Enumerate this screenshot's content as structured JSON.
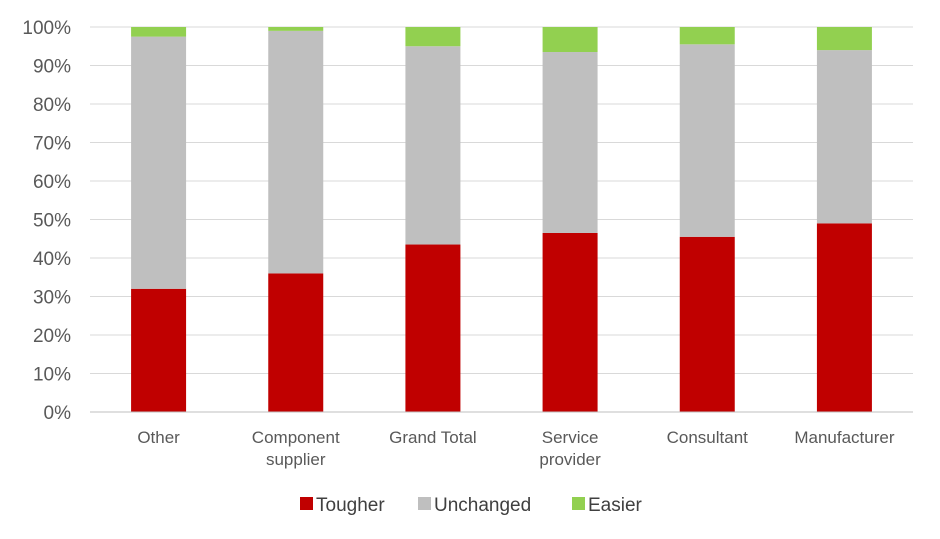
{
  "chart_data": {
    "type": "bar",
    "stacked": true,
    "percent_stacked": true,
    "categories": [
      [
        "Other"
      ],
      [
        "Component",
        "supplier"
      ],
      [
        "Grand Total"
      ],
      [
        "Service",
        "provider"
      ],
      [
        "Consultant"
      ],
      [
        "Manufacturer"
      ]
    ],
    "series": [
      {
        "name": "Tougher",
        "color": "#c00000",
        "values": [
          32,
          36,
          43.5,
          46.5,
          45.5,
          49
        ]
      },
      {
        "name": "Unchanged",
        "color": "#bfbfbf",
        "values": [
          65.5,
          63,
          51.5,
          47,
          50,
          45
        ]
      },
      {
        "name": "Easier",
        "color": "#92d050",
        "values": [
          2.5,
          1,
          5,
          6.5,
          4.5,
          6
        ]
      }
    ],
    "y_ticks": [
      "0%",
      "10%",
      "20%",
      "30%",
      "40%",
      "50%",
      "60%",
      "70%",
      "80%",
      "90%",
      "100%"
    ],
    "ylim": [
      0,
      100
    ],
    "grid": true,
    "legend_position": "bottom",
    "title": "",
    "xlabel": "",
    "ylabel": ""
  }
}
